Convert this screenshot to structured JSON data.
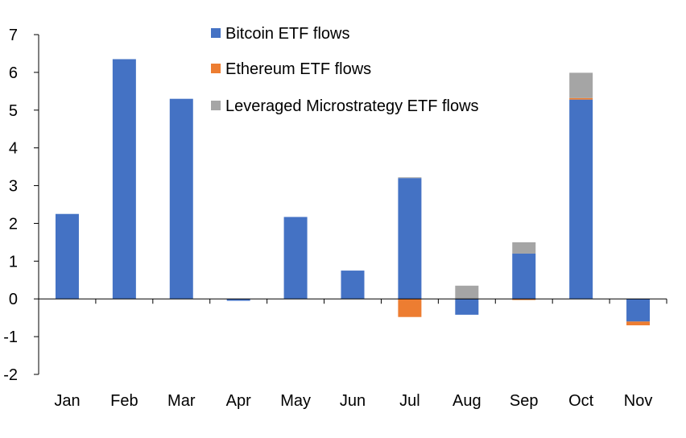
{
  "chart_data": {
    "type": "bar",
    "stacked": true,
    "title": "",
    "xlabel": "",
    "ylabel": "",
    "ylim": [
      -2,
      7
    ],
    "yticks": [
      -2,
      -1,
      0,
      1,
      2,
      3,
      4,
      5,
      6,
      7
    ],
    "categories": [
      "Jan",
      "Feb",
      "Mar",
      "Apr",
      "May",
      "Jun",
      "Jul",
      "Aug",
      "Sep",
      "Oct",
      "Nov"
    ],
    "legend_position": "top-center",
    "series": [
      {
        "name": "Bitcoin ETF flows",
        "color": "#4472C4",
        "values": [
          2.25,
          6.35,
          5.3,
          -0.05,
          2.17,
          0.75,
          3.2,
          -0.42,
          1.2,
          5.28,
          -0.6
        ]
      },
      {
        "name": "Ethereum ETF flows",
        "color": "#ED7D31",
        "values": [
          0,
          0,
          0,
          0,
          0,
          0,
          -0.48,
          0,
          -0.03,
          0.04,
          -0.1
        ]
      },
      {
        "name": "Leveraged Microstrategy ETF flows",
        "color": "#A5A5A5",
        "values": [
          0,
          0,
          0,
          0,
          0,
          0,
          0.02,
          0.35,
          0.3,
          0.67,
          0
        ]
      }
    ]
  }
}
